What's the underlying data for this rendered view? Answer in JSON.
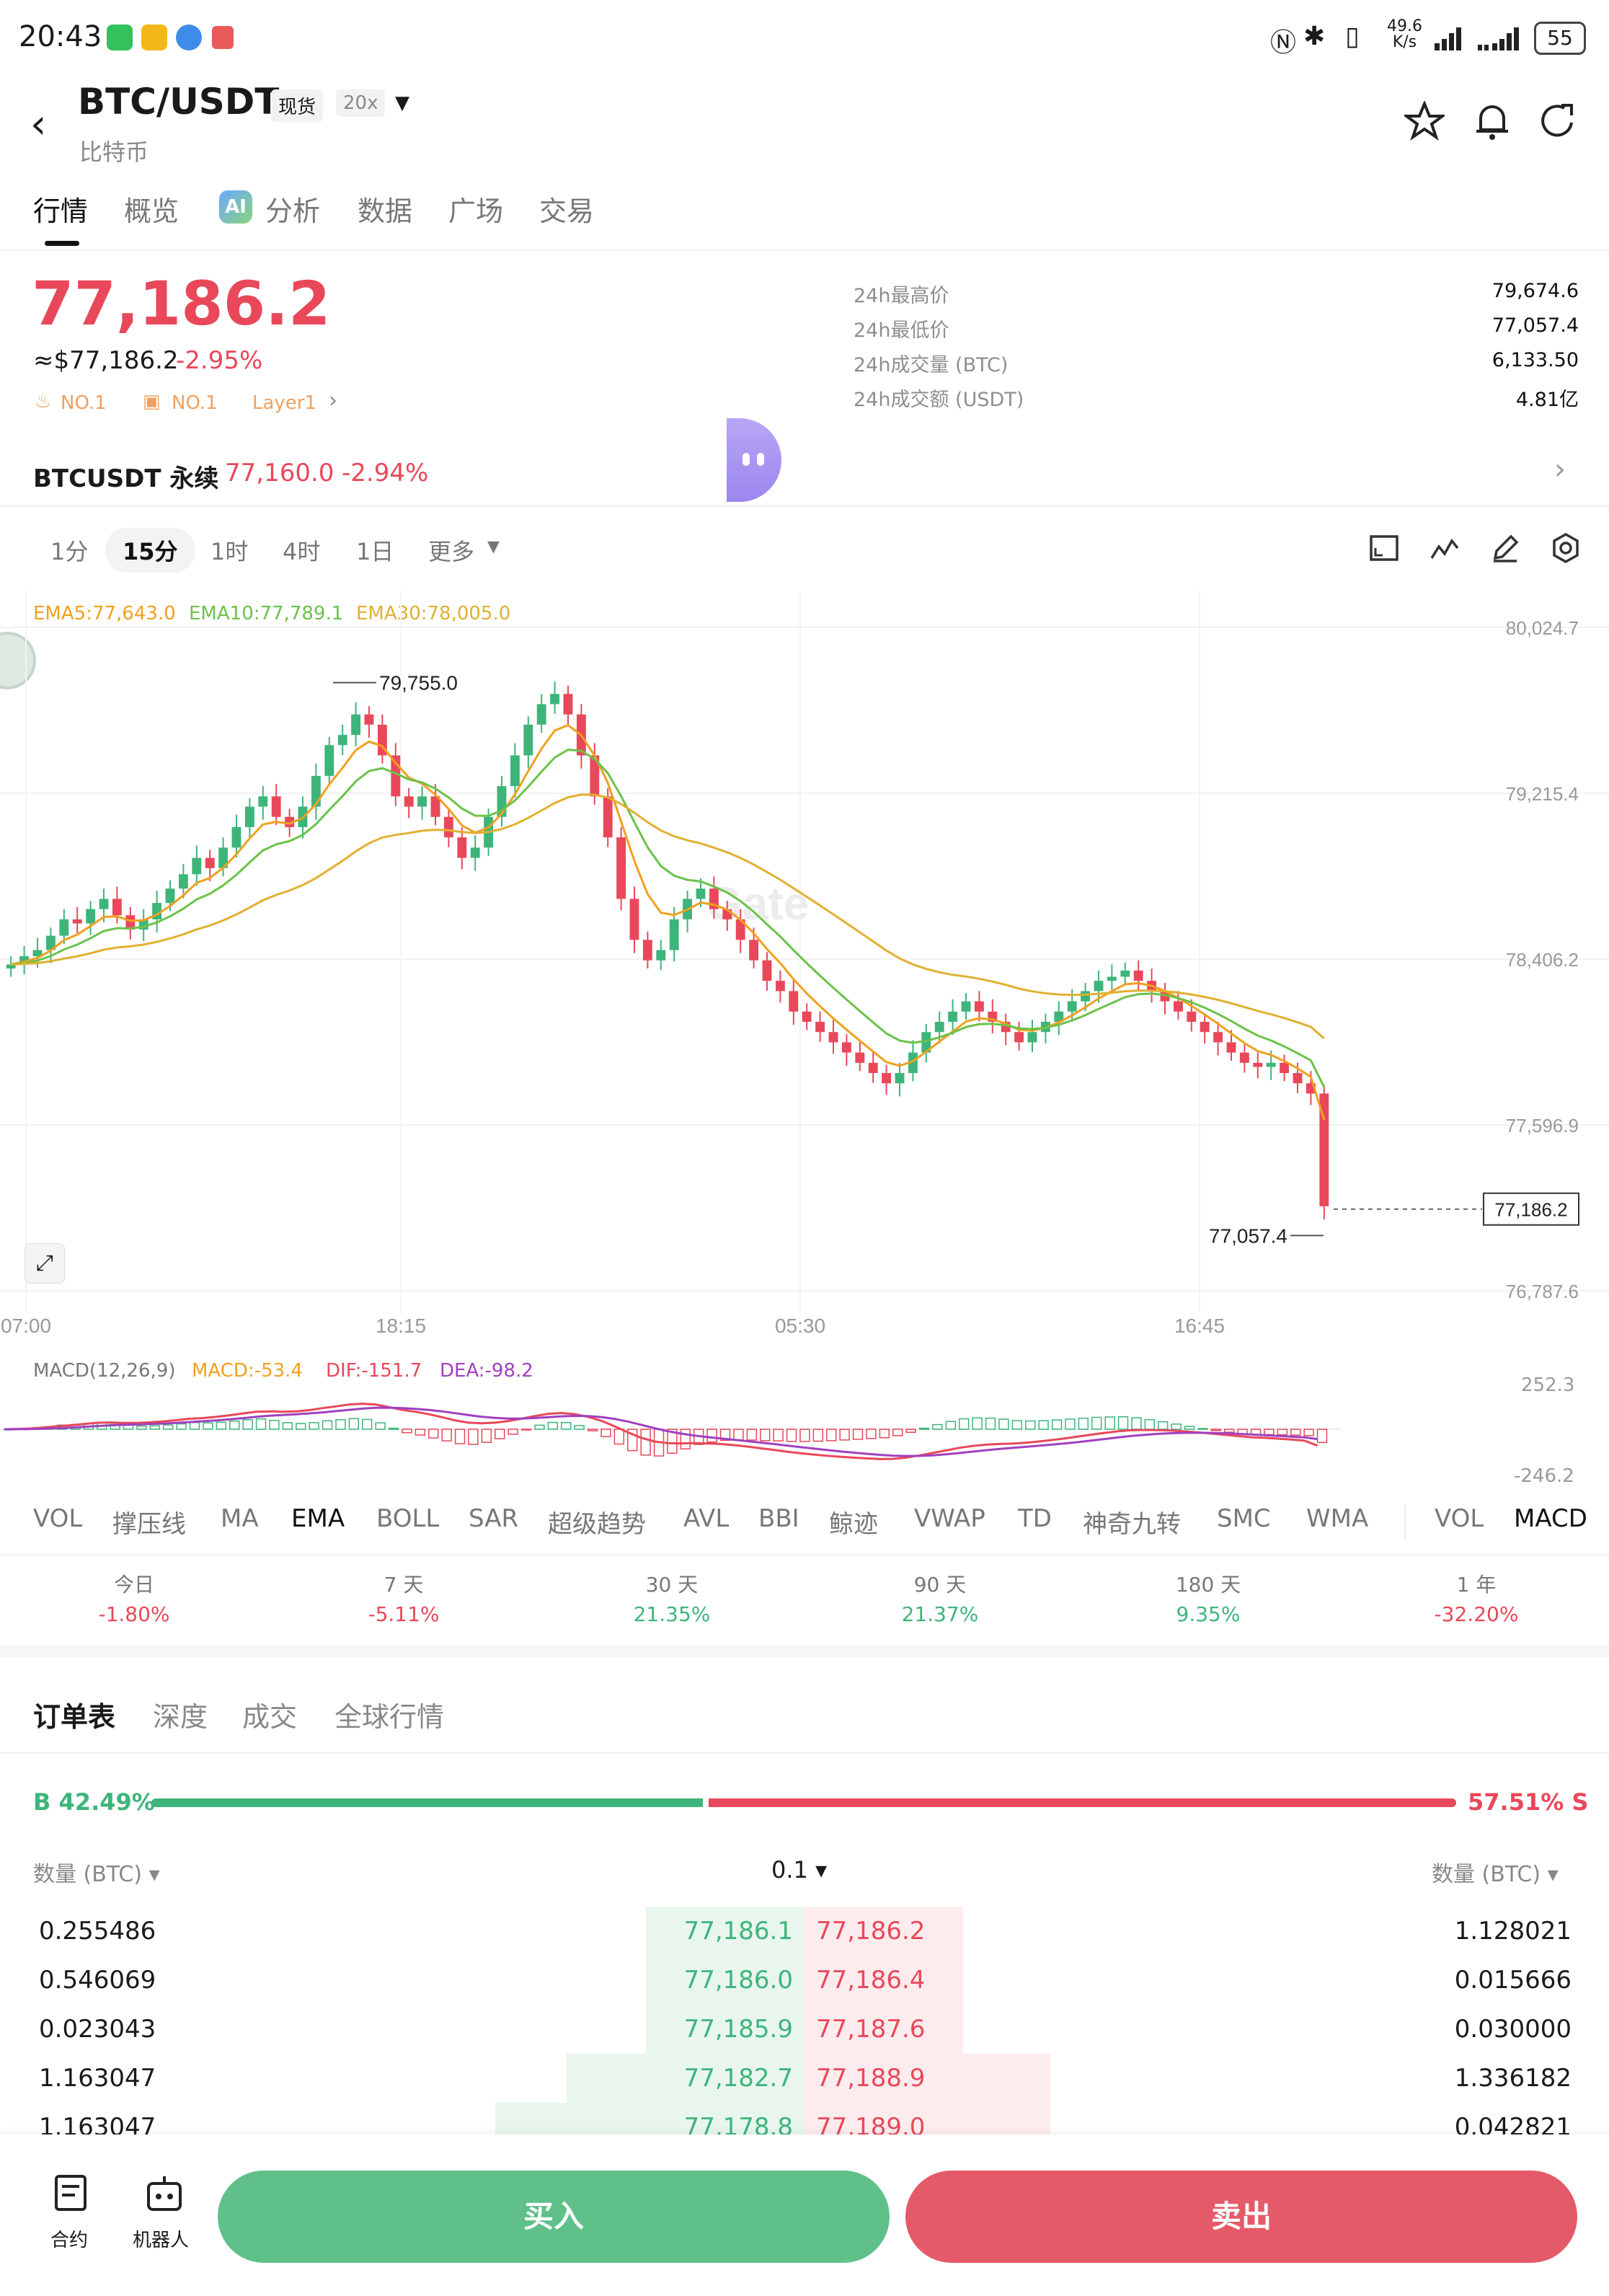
{
  "status_bar": {
    "time": "20:43",
    "net_speed_top": "49.6",
    "net_speed_unit": "K/s",
    "battery": "55"
  },
  "header": {
    "pair": "BTC/USDT",
    "market_tag": "现货",
    "leverage_tag": "20x",
    "subtitle": "比特币"
  },
  "nav_tabs": [
    "行情",
    "概览",
    "分析",
    "数据",
    "广场",
    "交易"
  ],
  "price_block": {
    "last_price": "77,186.2",
    "usd_approx": "≈$77,186.2",
    "change_pct": "-2.95%",
    "rank1": "NO.1",
    "rank2": "NO.1",
    "sector": "Layer1"
  },
  "stats": [
    {
      "label": "24h最高价",
      "value": "79,674.6"
    },
    {
      "label": "24h最低价",
      "value": "77,057.4"
    },
    {
      "label": "24h成交量 (BTC)",
      "value": "6,133.50"
    },
    {
      "label": "24h成交额 (USDT)",
      "value": "4.81亿"
    }
  ],
  "perp": {
    "name": "BTCUSDT 永续",
    "price": "77,160.0",
    "change": "-2.94%"
  },
  "timeframes": [
    "1分",
    "15分",
    "1时",
    "4时",
    "1日",
    "更多"
  ],
  "active_timeframe_index": 1,
  "ema_legend": {
    "ema5": "EMA5:77,643.0",
    "ema10": "EMA10:77,789.1",
    "ema30": "EMA30:78,005.0",
    "ema5_color": "#f0a020",
    "ema10_color": "#6cc24a",
    "ema30_color": "#e0b030"
  },
  "chart_data": {
    "type": "candlestick",
    "y_axis_ticks": [
      "80,024.7",
      "79,215.4",
      "78,406.2",
      "77,596.9",
      "76,787.6"
    ],
    "x_axis_ticks": [
      "07:00",
      "18:15",
      "05:30",
      "16:45"
    ],
    "high_annotation": "79,755.0",
    "low_annotation": "77,057.4",
    "last_price_label": "77,186.2",
    "ylim": [
      76787.6,
      80024.7
    ],
    "watermark": "Gate",
    "closes": [
      78380,
      78420,
      78450,
      78520,
      78600,
      78580,
      78650,
      78700,
      78620,
      78550,
      78600,
      78680,
      78750,
      78820,
      78900,
      78850,
      78950,
      79050,
      79150,
      79200,
      79100,
      79050,
      79150,
      79300,
      79450,
      79500,
      79600,
      79550,
      79400,
      79200,
      79150,
      79200,
      79100,
      79000,
      78900,
      78950,
      79100,
      79250,
      79400,
      79550,
      79650,
      79700,
      79600,
      79400,
      79200,
      79000,
      78700,
      78500,
      78400,
      78450,
      78600,
      78700,
      78750,
      78650,
      78600,
      78500,
      78400,
      78300,
      78250,
      78150,
      78100,
      78050,
      78000,
      77950,
      77900,
      77850,
      77800,
      77850,
      77950,
      78050,
      78100,
      78150,
      78200,
      78150,
      78100,
      78050,
      78000,
      78050,
      78100,
      78150,
      78200,
      78250,
      78300,
      78320,
      78350,
      78300,
      78250,
      78200,
      78150,
      78100,
      78050,
      78000,
      77950,
      77900,
      77880,
      77900,
      77850,
      77800,
      77750,
      77200
    ]
  },
  "macd": {
    "label": "MACD(12,26,9)",
    "macd": "MACD:-53.4",
    "dif": "DIF:-151.7",
    "dea": "DEA:-98.2",
    "axis_top": "252.3",
    "axis_bottom": "-246.2",
    "macd_color": "#f0a020",
    "dif_color": "#e8485a",
    "dea_color": "#a040c0"
  },
  "indicator_tabs": [
    "VOL",
    "撑压线",
    "MA",
    "EMA",
    "BOLL",
    "SAR",
    "超级趋势",
    "AVL",
    "BBI",
    "鲸迹",
    "VWAP",
    "TD",
    "神奇九转",
    "SMC",
    "WMA"
  ],
  "active_indicator": "EMA",
  "sub_indicator_tabs": [
    "VOL",
    "MACD"
  ],
  "performance": [
    {
      "label": "今日",
      "value": "-1.80%",
      "dir": "down"
    },
    {
      "label": "7 天",
      "value": "-5.11%",
      "dir": "down"
    },
    {
      "label": "30 天",
      "value": "21.35%",
      "dir": "up"
    },
    {
      "label": "90 天",
      "value": "21.37%",
      "dir": "up"
    },
    {
      "label": "180 天",
      "value": "9.35%",
      "dir": "up"
    },
    {
      "label": "1 年",
      "value": "-32.20%",
      "dir": "down"
    }
  ],
  "book_tabs": [
    "订单表",
    "深度",
    "成交",
    "全球行情"
  ],
  "book": {
    "buy_ratio": "B 42.49%",
    "sell_ratio": "57.51% S",
    "buy_fraction": 0.4249,
    "qty_header_left": "数量 (BTC)",
    "precision": "0.1",
    "qty_header_right": "数量 (BTC)",
    "rows": [
      {
        "bid_qty": "0.255486",
        "bid": "77,186.1",
        "ask": "77,186.2",
        "ask_qty": "1.128021",
        "bid_depth": 0.4,
        "ask_depth": 0.4
      },
      {
        "bid_qty": "0.546069",
        "bid": "77,186.0",
        "ask": "77,186.4",
        "ask_qty": "0.015666",
        "bid_depth": 0.4,
        "ask_depth": 0.4
      },
      {
        "bid_qty": "0.023043",
        "bid": "77,185.9",
        "ask": "77,187.6",
        "ask_qty": "0.030000",
        "bid_depth": 0.4,
        "ask_depth": 0.4
      },
      {
        "bid_qty": "1.163047",
        "bid": "77,182.7",
        "ask": "77,188.9",
        "ask_qty": "1.336182",
        "bid_depth": 0.6,
        "ask_depth": 0.62
      },
      {
        "bid_qty": "1.163047",
        "bid": "77,178.8",
        "ask": "77,189.0",
        "ask_qty": "0.042821",
        "bid_depth": 0.78,
        "ask_depth": 0.62
      }
    ]
  },
  "bottom_bar": {
    "contract": "合约",
    "robot": "机器人",
    "buy": "买入",
    "sell": "卖出"
  },
  "colors": {
    "up": "#3db57a",
    "down": "#e8485a",
    "buy_button": "#5fc08a",
    "sell_button": "#e55a68"
  }
}
